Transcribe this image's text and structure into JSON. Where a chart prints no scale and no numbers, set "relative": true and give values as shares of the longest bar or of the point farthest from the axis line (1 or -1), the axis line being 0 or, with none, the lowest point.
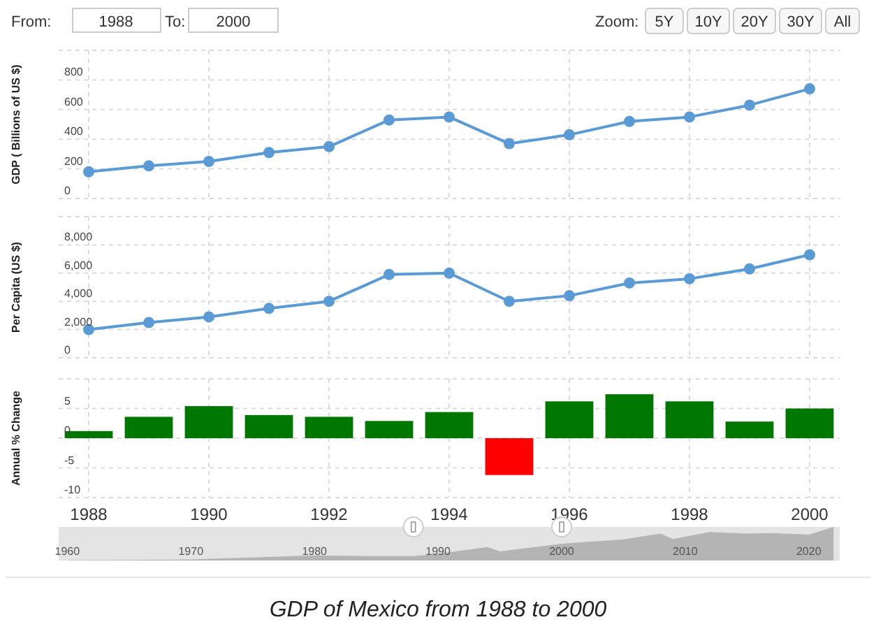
{
  "chart_data": [
    {
      "type": "other",
      "title": "GDP of Mexico from 1988 to 2000",
      "annotations": [
        "From:",
        "1988",
        "To:",
        "2000",
        "Zoom:",
        "5Y",
        "10Y",
        "20Y",
        "30Y",
        "All"
      ]
    },
    {
      "type": "line",
      "ylabel": "GDP ( Billions of US $)",
      "x": [
        1988,
        1989,
        1990,
        1991,
        1992,
        1993,
        1994,
        1995,
        1996,
        1997,
        1998,
        1999,
        2000
      ],
      "series": [
        {
          "color": "#5b9bd5",
          "values": [
            180,
            220,
            250,
            310,
            350,
            530,
            550,
            370,
            430,
            520,
            550,
            630,
            740
          ]
        }
      ],
      "xlim": [
        1987.5,
        2000.5
      ],
      "xticks": [
        1988,
        1990,
        1992,
        1994,
        1996,
        1998,
        2000
      ],
      "ylim": [
        0,
        1000
      ],
      "yticks": [
        0,
        200,
        400,
        600,
        800,
        {
          "value": 1000,
          "label": null
        }
      ],
      "grid": true,
      "marker": "circle",
      "tick_labels": "y"
    },
    {
      "type": "line",
      "ylabel": "Per Capita (US $)",
      "x": [
        1988,
        1989,
        1990,
        1991,
        1992,
        1993,
        1994,
        1995,
        1996,
        1997,
        1998,
        1999,
        2000
      ],
      "series": [
        {
          "color": "#5b9bd5",
          "values": [
            2000,
            2500,
            2900,
            3500,
            4000,
            5900,
            6000,
            4000,
            4400,
            5300,
            5600,
            6300,
            7300
          ]
        }
      ],
      "xlim": [
        1987.5,
        2000.5
      ],
      "xticks": [
        1988,
        1990,
        1992,
        1994,
        1996,
        1998,
        2000
      ],
      "ylim": [
        0,
        10000
      ],
      "yticks": [
        0,
        {
          "value": 2000,
          "label": "2,000"
        },
        {
          "value": 4000,
          "label": "4,000"
        },
        {
          "value": 6000,
          "label": "6,000"
        },
        {
          "value": 8000,
          "label": "8,000"
        },
        {
          "value": 10000,
          "label": null
        }
      ],
      "grid": true,
      "marker": "circle",
      "tick_labels": "y"
    },
    {
      "type": "bar",
      "ylabel": "Annual % Change",
      "x": [
        1988,
        1989,
        1990,
        1991,
        1992,
        1993,
        1994,
        1995,
        1996,
        1997,
        1998,
        1999,
        2000
      ],
      "values": [
        1.2,
        3.6,
        5.4,
        3.9,
        3.6,
        2.9,
        4.4,
        -6.2,
        6.2,
        7.4,
        6.2,
        2.8,
        5.0
      ],
      "colors": [
        "#007800",
        "#007800",
        "#007800",
        "#007800",
        "#007800",
        "#007800",
        "#007800",
        "#ff0000",
        "#007800",
        "#007800",
        "#007800",
        "#007800",
        "#007800"
      ],
      "xlim": [
        1987.5,
        2000.5
      ],
      "xticks": [
        1988,
        1990,
        1992,
        1994,
        1996,
        1998,
        2000
      ],
      "ylim": [
        -10,
        10
      ],
      "yticks": [
        -10,
        -5,
        0,
        5,
        {
          "value": 10,
          "label": null
        }
      ],
      "grid": true
    },
    {
      "type": "area",
      "relative": true,
      "x": [
        1960,
        1970,
        1980,
        1985,
        1988,
        1990,
        1994,
        1995,
        2000,
        2005,
        2008,
        2009,
        2012,
        2015,
        2017,
        2020,
        2022
      ],
      "values": [
        0.01,
        0.03,
        0.15,
        0.13,
        0.13,
        0.2,
        0.4,
        0.27,
        0.5,
        0.63,
        0.8,
        0.64,
        0.85,
        0.8,
        0.82,
        0.77,
        1
      ],
      "color": "#b4b4b4",
      "xlim": [
        1959.3,
        2022.5
      ],
      "xticks": [
        1960,
        1970,
        1980,
        1990,
        2000,
        2010,
        2020
      ],
      "tick_labels": "x"
    }
  ]
}
